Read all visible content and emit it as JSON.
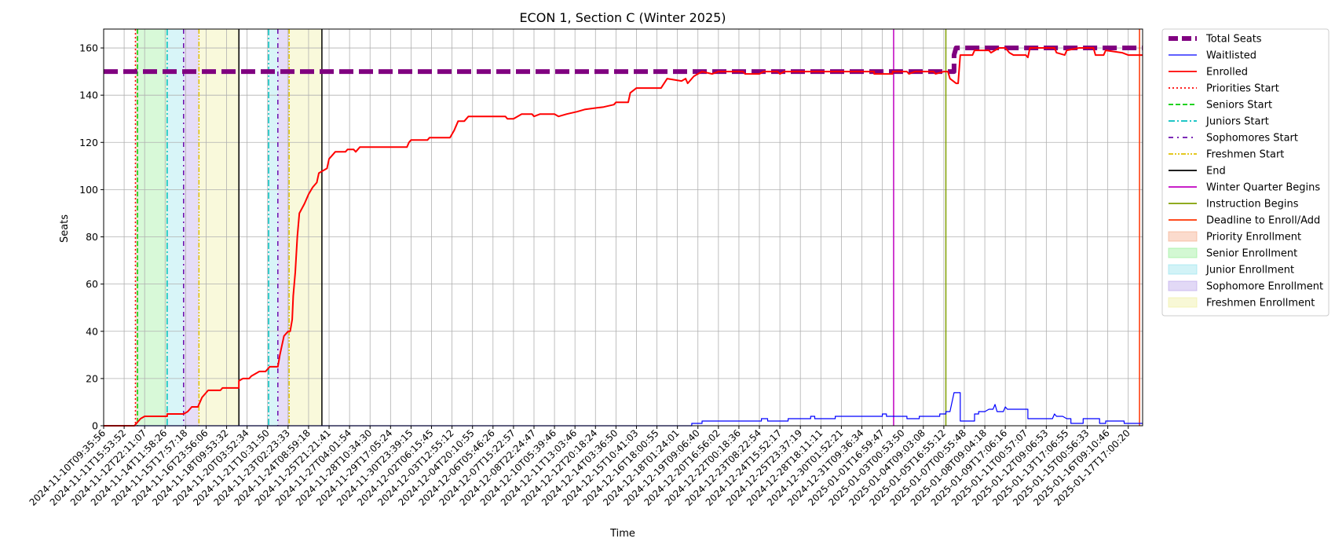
{
  "chart_data": {
    "type": "line",
    "title": "ECON 1, Section C (Winter 2025)",
    "xlabel": "Time",
    "ylabel": "Seats",
    "ylim": [
      0,
      168
    ],
    "yticks": [
      0,
      20,
      40,
      60,
      80,
      100,
      120,
      140,
      160
    ],
    "grid": true,
    "legend_position": "outside-right",
    "x_tick_labels": [
      "2024-11-10T09:35:56",
      "2024-11-11T15:53:52",
      "2024-11-12T22:11:07",
      "2024-11-14T11:58:26",
      "2024-11-15T17:57:18",
      "2024-11-16T23:56:06",
      "2024-11-18T09:53:32",
      "2024-11-20T03:52:34",
      "2024-11-21T10:31:50",
      "2024-11-23T02:23:33",
      "2024-11-24T08:59:18",
      "2024-11-25T21:21:41",
      "2024-11-27T04:01:54",
      "2024-11-28T10:34:30",
      "2024-11-29T17:05:24",
      "2024-11-30T23:39:15",
      "2024-12-02T06:15:45",
      "2024-12-03T12:55:12",
      "2024-12-04T20:10:55",
      "2024-12-06T05:46:26",
      "2024-12-07T15:22:57",
      "2024-12-08T22:24:47",
      "2024-12-10T05:39:46",
      "2024-12-11T13:03:46",
      "2024-12-12T20:18:24",
      "2024-12-14T03:36:50",
      "2024-12-15T10:41:03",
      "2024-12-16T18:00:55",
      "2024-12-18T01:24:01",
      "2024-12-19T09:06:40",
      "2024-12-20T16:56:02",
      "2024-12-22T00:18:36",
      "2024-12-23T08:22:54",
      "2024-12-24T15:52:17",
      "2024-12-25T23:37:19",
      "2024-12-28T18:11:11",
      "2024-12-30T01:52:21",
      "2024-12-31T09:36:34",
      "2025-01-01T16:59:47",
      "2025-01-03T00:53:50",
      "2025-01-04T09:03:08",
      "2025-01-05T16:55:12",
      "2025-01-07T00:55:48",
      "2025-01-08T09:04:18",
      "2025-01-09T17:06:16",
      "2025-01-11T00:57:07",
      "2025-01-12T09:06:53",
      "2025-01-13T17:06:55",
      "2025-01-15T00:56:33",
      "2025-01-16T09:10:46",
      "2025-01-17T17:00:20"
    ],
    "x_index_range": [
      0,
      50.7
    ],
    "series": [
      {
        "name": "Total Seats",
        "color": "#800080",
        "style": "dashed-thick",
        "points": [
          [
            0,
            150
          ],
          [
            41.5,
            150
          ],
          [
            41.5,
            157
          ],
          [
            41.6,
            160
          ],
          [
            50.7,
            160
          ]
        ]
      },
      {
        "name": "Waitlisted",
        "color": "#0000ff",
        "style": "solid-thin",
        "points": [
          [
            0,
            0
          ],
          [
            28.7,
            0
          ],
          [
            28.7,
            1
          ],
          [
            29.2,
            1
          ],
          [
            29.2,
            2
          ],
          [
            31,
            2
          ],
          [
            31.5,
            2
          ],
          [
            32.1,
            2
          ],
          [
            32.1,
            3
          ],
          [
            32.4,
            3
          ],
          [
            32.4,
            2
          ],
          [
            33.4,
            2
          ],
          [
            33.4,
            3
          ],
          [
            34.5,
            3
          ],
          [
            34.5,
            4
          ],
          [
            34.7,
            4
          ],
          [
            34.7,
            3
          ],
          [
            35.7,
            3
          ],
          [
            35.7,
            4
          ],
          [
            38,
            4
          ],
          [
            38,
            5
          ],
          [
            38.2,
            5
          ],
          [
            38.2,
            4
          ],
          [
            39.2,
            4
          ],
          [
            39.2,
            3
          ],
          [
            39.8,
            3
          ],
          [
            39.8,
            4
          ],
          [
            40.8,
            4
          ],
          [
            40.8,
            5
          ],
          [
            41.1,
            5
          ],
          [
            41.1,
            6
          ],
          [
            41.3,
            6
          ],
          [
            41.4,
            10
          ],
          [
            41.5,
            14
          ],
          [
            41.8,
            14
          ],
          [
            41.8,
            2
          ],
          [
            42.5,
            2
          ],
          [
            42.5,
            5
          ],
          [
            42.7,
            5
          ],
          [
            42.7,
            6
          ],
          [
            43,
            6
          ],
          [
            43.2,
            7
          ],
          [
            43.4,
            7
          ],
          [
            43.5,
            9
          ],
          [
            43.6,
            6
          ],
          [
            43.9,
            6
          ],
          [
            44,
            8
          ],
          [
            44.1,
            7
          ],
          [
            45.1,
            7
          ],
          [
            45.1,
            3
          ],
          [
            46.3,
            3
          ],
          [
            46.4,
            5
          ],
          [
            46.5,
            4
          ],
          [
            46.8,
            4
          ],
          [
            47,
            3
          ],
          [
            47.2,
            3
          ],
          [
            47.2,
            1
          ],
          [
            47.8,
            1
          ],
          [
            47.8,
            3
          ],
          [
            48.6,
            3
          ],
          [
            48.6,
            1
          ],
          [
            48.9,
            1
          ],
          [
            48.9,
            2
          ],
          [
            49.8,
            2
          ],
          [
            49.8,
            1
          ],
          [
            50.7,
            1
          ]
        ]
      },
      {
        "name": "Enrolled",
        "color": "#ff0000",
        "style": "solid",
        "points": [
          [
            0,
            0
          ],
          [
            1.5,
            0
          ],
          [
            1.7,
            2
          ],
          [
            1.8,
            3
          ],
          [
            2.0,
            4
          ],
          [
            3.1,
            4
          ],
          [
            3.1,
            5
          ],
          [
            3.9,
            5
          ],
          [
            4.1,
            6
          ],
          [
            4.3,
            8
          ],
          [
            4.6,
            8
          ],
          [
            4.8,
            12
          ],
          [
            5.0,
            14
          ],
          [
            5.1,
            15
          ],
          [
            5.7,
            15
          ],
          [
            5.8,
            16
          ],
          [
            6.6,
            16
          ],
          [
            6.6,
            19
          ],
          [
            6.8,
            20
          ],
          [
            7.1,
            20
          ],
          [
            7.2,
            21
          ],
          [
            7.4,
            22
          ],
          [
            7.6,
            23
          ],
          [
            7.9,
            23
          ],
          [
            8.0,
            24
          ],
          [
            8.1,
            25
          ],
          [
            8.5,
            25
          ],
          [
            8.6,
            30
          ],
          [
            8.8,
            38
          ],
          [
            9.0,
            40
          ],
          [
            9.1,
            40
          ],
          [
            9.2,
            45
          ],
          [
            9.25,
            55
          ],
          [
            9.35,
            65
          ],
          [
            9.45,
            80
          ],
          [
            9.55,
            90
          ],
          [
            9.8,
            94
          ],
          [
            10.0,
            98
          ],
          [
            10.2,
            101
          ],
          [
            10.4,
            103
          ],
          [
            10.5,
            107
          ],
          [
            10.9,
            109
          ],
          [
            11.0,
            113
          ],
          [
            11.2,
            115
          ],
          [
            11.3,
            116
          ],
          [
            11.8,
            116
          ],
          [
            11.9,
            117
          ],
          [
            12.2,
            117
          ],
          [
            12.3,
            116
          ],
          [
            12.5,
            118
          ],
          [
            14.8,
            118
          ],
          [
            14.9,
            120
          ],
          [
            15.0,
            121
          ],
          [
            15.8,
            121
          ],
          [
            15.9,
            122
          ],
          [
            16.9,
            122
          ],
          [
            17.1,
            125
          ],
          [
            17.3,
            129
          ],
          [
            17.6,
            129
          ],
          [
            17.8,
            131
          ],
          [
            19.6,
            131
          ],
          [
            19.7,
            130
          ],
          [
            20.0,
            130
          ],
          [
            20.4,
            132
          ],
          [
            20.9,
            132
          ],
          [
            21.0,
            131
          ],
          [
            21.3,
            132
          ],
          [
            22.0,
            132
          ],
          [
            22.2,
            131
          ],
          [
            22.6,
            132
          ],
          [
            23.1,
            133
          ],
          [
            23.5,
            134
          ],
          [
            24.4,
            135
          ],
          [
            24.9,
            136
          ],
          [
            25.0,
            137
          ],
          [
            25.6,
            137
          ],
          [
            25.7,
            141
          ],
          [
            26.0,
            143
          ],
          [
            27.2,
            143
          ],
          [
            27.5,
            147
          ],
          [
            28.2,
            146
          ],
          [
            28.4,
            147
          ],
          [
            28.5,
            145
          ],
          [
            28.8,
            148
          ],
          [
            29.2,
            150
          ],
          [
            29.7,
            149
          ],
          [
            30.0,
            150
          ],
          [
            31.2,
            150
          ],
          [
            31.3,
            149
          ],
          [
            32.0,
            149
          ],
          [
            32.2,
            150
          ],
          [
            32.9,
            150
          ],
          [
            33.0,
            149
          ],
          [
            33.2,
            150
          ],
          [
            37.6,
            150
          ],
          [
            37.6,
            149
          ],
          [
            38.5,
            149
          ],
          [
            38.5,
            150
          ],
          [
            39.2,
            150
          ],
          [
            39.3,
            149
          ],
          [
            39.6,
            150
          ],
          [
            40.5,
            150
          ],
          [
            40.6,
            149
          ],
          [
            41.0,
            150
          ],
          [
            41.2,
            150
          ],
          [
            41.3,
            147
          ],
          [
            41.6,
            145
          ],
          [
            41.7,
            145
          ],
          [
            41.8,
            157
          ],
          [
            42.4,
            157
          ],
          [
            42.5,
            159
          ],
          [
            43.2,
            159
          ],
          [
            43.3,
            158
          ],
          [
            43.7,
            160
          ],
          [
            44.0,
            160
          ],
          [
            44.2,
            158
          ],
          [
            44.4,
            157
          ],
          [
            45.0,
            157
          ],
          [
            45.1,
            156
          ],
          [
            45.2,
            160
          ],
          [
            46.4,
            160
          ],
          [
            46.5,
            158
          ],
          [
            46.9,
            157
          ],
          [
            47.0,
            159
          ],
          [
            47.6,
            160
          ],
          [
            48.3,
            160
          ],
          [
            48.4,
            157
          ],
          [
            48.8,
            157
          ],
          [
            48.9,
            159
          ],
          [
            49.7,
            158
          ],
          [
            50.0,
            157
          ],
          [
            50.7,
            157
          ]
        ]
      }
    ],
    "markers": [
      {
        "name": "Priorities Start",
        "x": 1.55,
        "color": "#ff0000",
        "style": "dotted"
      },
      {
        "name": "Seniors Start",
        "x": 1.65,
        "color": "#00cc00",
        "style": "dashed"
      },
      {
        "name": "Juniors Start",
        "x": 3.1,
        "color": "#00bfbf",
        "style": "dashdot",
        "also_at": [
          8.05
        ]
      },
      {
        "name": "Sophomores Start",
        "x": 3.9,
        "color": "#6a0dad",
        "style": "loose-dashdot",
        "also_at": [
          8.5
        ]
      },
      {
        "name": "Freshmen Start",
        "x": 4.65,
        "color": "#e0c000",
        "style": "dashdotdot",
        "also_at": [
          9.05
        ]
      },
      {
        "name": "End",
        "x": 6.6,
        "color": "#000000",
        "style": "solid",
        "also_at": [
          10.65
        ]
      },
      {
        "name": "Winter Quarter Begins",
        "x": 38.55,
        "color": "#c000c0",
        "style": "solid"
      },
      {
        "name": "Instruction Begins",
        "x": 41.1,
        "color": "#7f9f00",
        "style": "solid"
      },
      {
        "name": "Deadline to Enroll/Add",
        "x": 50.55,
        "color": "#ff3300",
        "style": "solid"
      }
    ],
    "spans": [
      {
        "name": "Priority Enrollment",
        "x0": 1.55,
        "x1": 1.65,
        "color": "#f4a582"
      },
      {
        "name": "Senior Enrollment",
        "x0": 1.65,
        "x1": 3.1,
        "color": "#90ee90"
      },
      {
        "name": "Junior Enrollment",
        "x0": 3.1,
        "x1": 3.9,
        "color": "#8ee2ec",
        "also": [
          [
            8.05,
            8.5
          ]
        ]
      },
      {
        "name": "Sophomore Enrollment",
        "x0": 3.9,
        "x1": 4.65,
        "color": "#b79fe8",
        "also": [
          [
            8.5,
            9.05
          ]
        ]
      },
      {
        "name": "Freshmen Enrollment",
        "x0": 4.65,
        "x1": 6.6,
        "color": "#eeee99",
        "also": [
          [
            9.05,
            10.65
          ]
        ]
      }
    ]
  }
}
